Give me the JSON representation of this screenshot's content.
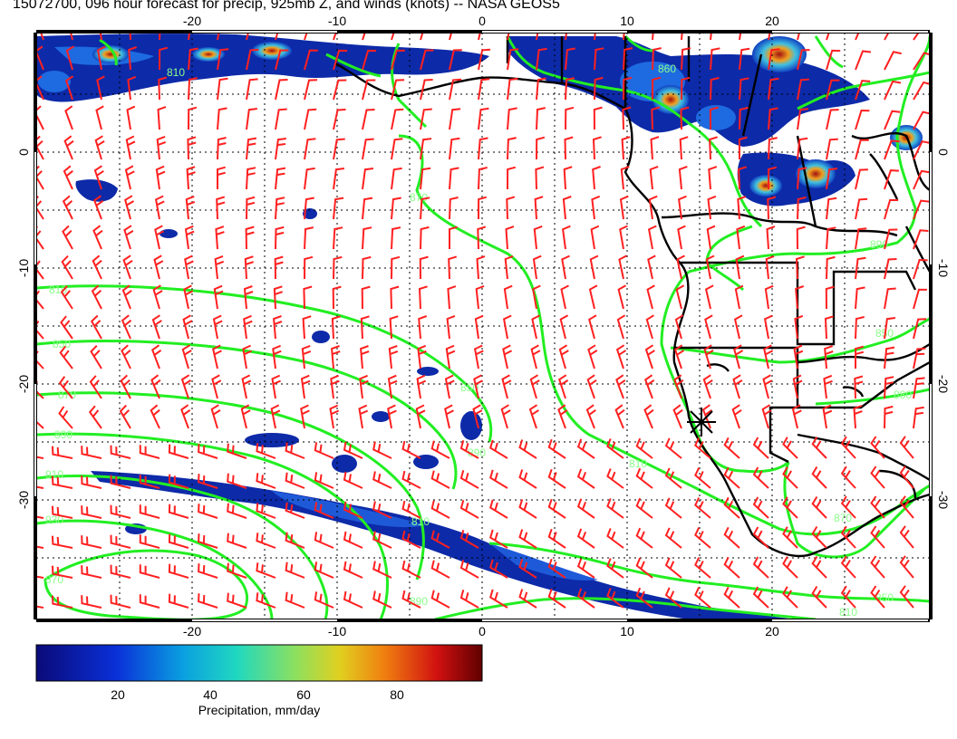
{
  "title": "15072700, 096 hour forecast for precip, 925mb Z, and winds (knots) -- NASA GEOS5",
  "colors": {
    "barb": "#ff2020",
    "contour": "#22ee22",
    "contour_label": "#88ff88",
    "coast": "#000000",
    "precip_dark": "#0a1a8c",
    "precip_mid": "#1e5ad8"
  },
  "axes": {
    "lon_range": [
      -31,
      31
    ],
    "lat_range": [
      -40,
      10
    ],
    "x_ticks_top": [
      "-20",
      "-10",
      "0",
      "10",
      "20"
    ],
    "x_ticks_bottom": [
      "-20",
      "-10",
      "0",
      "10",
      "20"
    ],
    "y_ticks_left": [
      "0",
      "-10",
      "-20",
      "-30"
    ],
    "y_ticks_right": [
      "0",
      "-10",
      "-20",
      "-30"
    ],
    "tick_values_lon": [
      -20,
      -10,
      0,
      10,
      20
    ],
    "tick_values_lat": [
      0,
      -10,
      -20,
      -30
    ],
    "grid": true
  },
  "contour_labels": [
    "810",
    "860",
    "870",
    "810",
    "890",
    "850",
    "870",
    "890",
    "910",
    "930",
    "870",
    "850",
    "890",
    "810",
    "810",
    "850",
    "870",
    "850",
    "810",
    "880",
    "890"
  ],
  "colorbar": {
    "label": "Precipitation, mm/day",
    "ticks": [
      "20",
      "40",
      "60",
      "80"
    ],
    "tick_values": [
      20,
      40,
      60,
      80
    ],
    "range": [
      0,
      98
    ]
  },
  "markers": {
    "star": "radar-star"
  }
}
